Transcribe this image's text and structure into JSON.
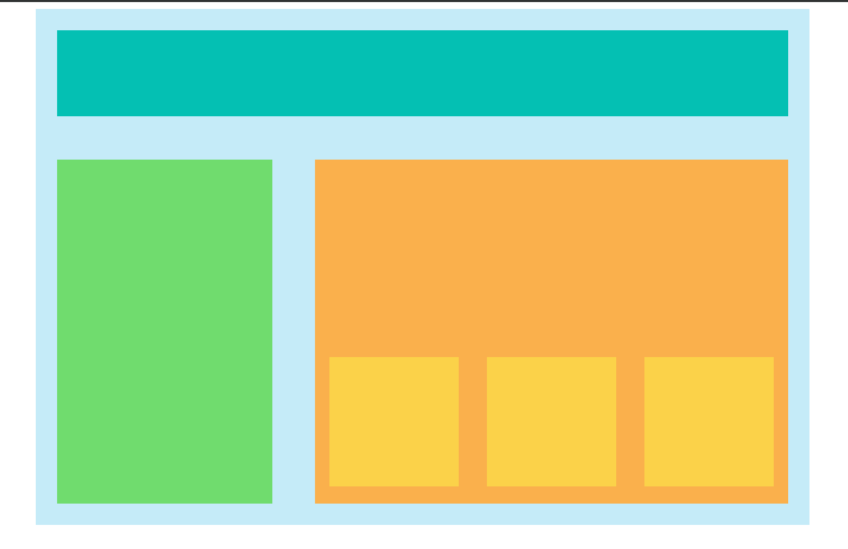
{
  "colors": {
    "page_background": "#ffffff",
    "top_rule": "#2f3232",
    "container": "#c5ebf8",
    "header": "#04c0b3",
    "sidebar": "#70dc6e",
    "main": "#fab04c",
    "card": "#fbd249"
  },
  "layout": {
    "blocks": [
      "header",
      "sidebar",
      "main"
    ],
    "main_cards": [
      {
        "name": "card-1"
      },
      {
        "name": "card-2"
      },
      {
        "name": "card-3"
      }
    ]
  }
}
